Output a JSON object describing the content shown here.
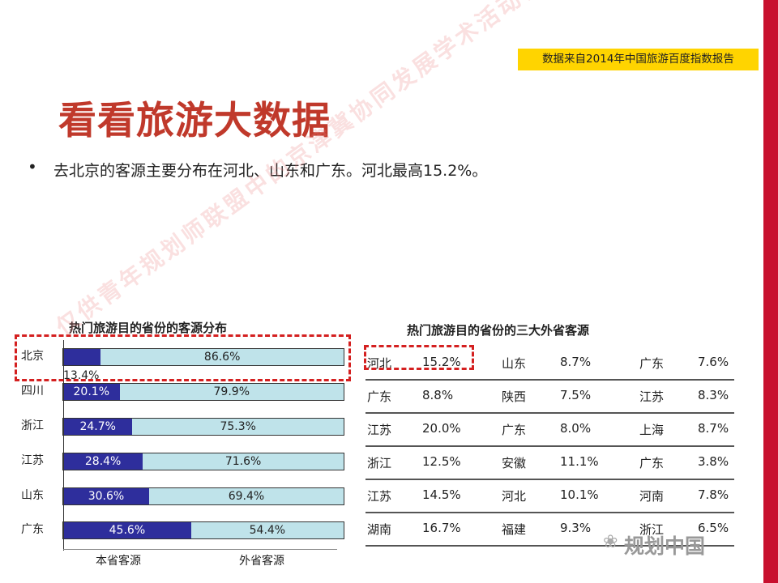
{
  "header": {
    "source_note": "数据来自2014年中国旅游百度指数报告"
  },
  "title": "看看旅游大数据",
  "bullet": "去北京的客源主要分布在河北、山东和广东。河北最高15.2%。",
  "watermark": "仅供青年规划师联盟中的京津冀协同发展学术活动使用",
  "chart": {
    "title": "热门旅游目的省份的客源分布",
    "legend": [
      "本省客源",
      "外省客源"
    ],
    "first_row_inside_label": "13.4%"
  },
  "chart_data": {
    "type": "bar",
    "orientation": "horizontal-stacked-100",
    "categories": [
      "北京",
      "四川",
      "浙江",
      "江苏",
      "山东",
      "广东"
    ],
    "series": [
      {
        "name": "本省客源",
        "values": [
          13.4,
          20.1,
          24.7,
          28.4,
          30.6,
          45.6
        ]
      },
      {
        "name": "外省客源",
        "values": [
          86.6,
          79.9,
          75.3,
          71.6,
          69.4,
          54.4
        ]
      }
    ],
    "colors": [
      "#2e2e9c",
      "#bfe3ea"
    ]
  },
  "table": {
    "title": "热门旅游目的省份的三大外省客源",
    "rows": [
      [
        [
          "河北",
          "15.2%"
        ],
        [
          "山东",
          "8.7%"
        ],
        [
          "广东",
          "7.6%"
        ]
      ],
      [
        [
          "广东",
          "8.8%"
        ],
        [
          "陕西",
          "7.5%"
        ],
        [
          "江苏",
          "8.3%"
        ]
      ],
      [
        [
          "江苏",
          "20.0%"
        ],
        [
          "广东",
          "8.0%"
        ],
        [
          "上海",
          "8.7%"
        ]
      ],
      [
        [
          "浙江",
          "12.5%"
        ],
        [
          "安徽",
          "11.1%"
        ],
        [
          "广东",
          "3.8%"
        ]
      ],
      [
        [
          "江苏",
          "14.5%"
        ],
        [
          "河北",
          "10.1%"
        ],
        [
          "河南",
          "7.8%"
        ]
      ],
      [
        [
          "湖南",
          "16.7%"
        ],
        [
          "福建",
          "9.3%"
        ],
        [
          "浙江",
          "6.5%"
        ]
      ]
    ]
  },
  "footer": {
    "wechat_label": "规划中国"
  },
  "colors": {
    "accent_red": "#c8102e",
    "title_red": "#c0392b",
    "source_bg": "#ffd400"
  }
}
